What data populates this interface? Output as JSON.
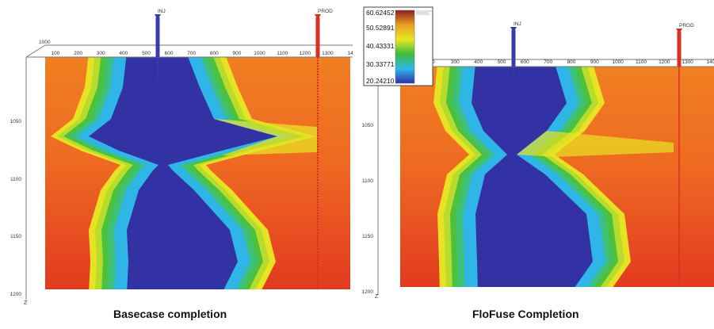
{
  "panels": [
    {
      "id": "basecase",
      "caption": "Basecase completion",
      "x_axis_label": "",
      "x_ticks": [
        "100",
        "200",
        "300",
        "400",
        "500",
        "600",
        "700",
        "800",
        "900",
        "1000",
        "1100",
        "1200",
        "1300",
        "14"
      ],
      "corner_label": "1000",
      "z_ticks": [
        "1050",
        "1100",
        "1150",
        "1200"
      ],
      "z_axis_label": "Z",
      "wells": [
        {
          "name": "INJ",
          "color": "#3a3ab0"
        },
        {
          "name": "PROD",
          "color": "#d83020"
        }
      ]
    },
    {
      "id": "flofuse",
      "caption": "FloFuse Completion",
      "x_axis_label": "",
      "x_ticks": [
        "00",
        "300",
        "400",
        "500",
        "600",
        "700",
        "800",
        "900",
        "1000",
        "1100",
        "1200",
        "1300",
        "140"
      ],
      "z_ticks": [
        "1050",
        "1100",
        "1150",
        "1200"
      ],
      "z_axis_label": "Z",
      "wells": [
        {
          "name": "INJ",
          "color": "#3a3ab0"
        },
        {
          "name": "PROD",
          "color": "#d83020"
        }
      ]
    }
  ],
  "colorbar": {
    "labels": [
      "60.62452",
      "50.52891",
      "40.43331",
      "30.33771",
      "20.24210"
    ],
    "colors": [
      "#8a1e1e",
      "#e8a020",
      "#e8e820",
      "#3cbc3c",
      "#30b8e8",
      "#3030a8"
    ]
  }
}
